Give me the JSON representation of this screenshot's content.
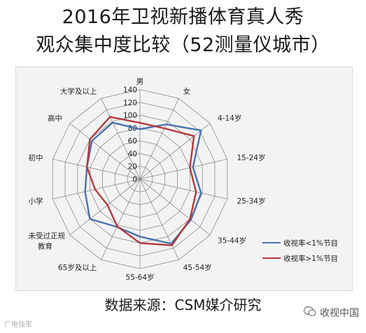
{
  "header": {
    "title_line1": "2016年卫视新播体育真人秀",
    "title_line2": "观众集中度比较（52测量仪城市）"
  },
  "footer": {
    "source": "数据来源：CSM媒介研究",
    "watermark_right": "收视中国",
    "watermark_left": "广电独家"
  },
  "colors": {
    "series_lt1": "#4a72b0",
    "series_gt1": "#b5393b",
    "grid": "#8c8c8c",
    "panel_bg": "#f3f3f3"
  },
  "chart_data": {
    "type": "radar",
    "categories": [
      "男",
      "女",
      "4-14岁",
      "15-24岁",
      "25-34岁",
      "35-44岁",
      "45-54岁",
      "55-64岁",
      "65岁及以上",
      "未受过正规教育",
      "小学",
      "初中",
      "高中",
      "大学及以上"
    ],
    "rlim": [
      0,
      140
    ],
    "ticks": [
      0,
      20,
      40,
      60,
      80,
      100,
      120,
      140
    ],
    "grid": true,
    "legend_position": "bottom-right",
    "series": [
      {
        "name": "收视率<1%节目",
        "values": [
          78,
          95,
          122,
          85,
          98,
          102,
          112,
          90,
          83,
          100,
          88,
          85,
          96,
          98
        ]
      },
      {
        "name": "收视率>1%节目",
        "values": [
          88,
          88,
          108,
          80,
          90,
          100,
          115,
          100,
          82,
          65,
          72,
          85,
          100,
          108
        ]
      }
    ]
  }
}
